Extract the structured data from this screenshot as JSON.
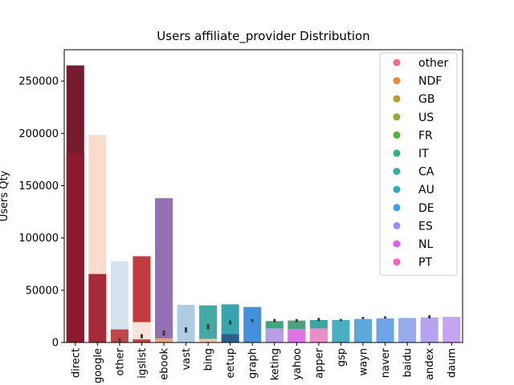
{
  "chart_data": {
    "type": "bar",
    "title": "Users affiliate_provider Distribution",
    "xlabel": "",
    "ylabel": "Users Qty",
    "ylim": [
      0,
      280000
    ],
    "yticks": [
      0,
      50000,
      100000,
      150000,
      200000,
      250000
    ],
    "ytick_labels": [
      "0",
      "50000",
      "100000",
      "150000",
      "200000",
      "250000"
    ],
    "categories": [
      "direct",
      "google",
      "other",
      "igslist",
      "ebook",
      "vast",
      "bing",
      "eetup",
      "graph",
      "keting",
      "yahoo",
      "apper",
      "gsp",
      "wayn",
      "naver",
      "baidu",
      "andex",
      "daum"
    ],
    "total_values": [
      265000,
      198500,
      77500,
      82500,
      138000,
      36000,
      35500,
      36500,
      34000,
      20500,
      21000,
      21500,
      21500,
      22500,
      23000,
      23500,
      24000,
      24500
    ],
    "overlay_bars": [
      {
        "category": "direct",
        "value": 181000,
        "color": "#8b1a2f"
      },
      {
        "category": "google",
        "value": 65500,
        "color": "#a72a3a"
      },
      {
        "category": "other",
        "value": 12500,
        "color": "#c0474a"
      },
      {
        "category": "igslist",
        "value": 19500,
        "color": "#fbe3d9"
      },
      {
        "category": "igslist",
        "value": 3000,
        "color": "#c0474a"
      },
      {
        "category": "ebook",
        "value": 4000,
        "color": "#e8a57f"
      },
      {
        "category": "bing",
        "value": 3500,
        "color": "#f1c7a9"
      },
      {
        "category": "eetup",
        "value": 8000,
        "color": "#2e5d8a"
      },
      {
        "category": "keting",
        "value": 13500,
        "color": "#b89ee8"
      },
      {
        "category": "yahoo",
        "value": 13000,
        "color": "#df72e6"
      },
      {
        "category": "apper",
        "value": 13500,
        "color": "#ea8ec9"
      }
    ],
    "error_bars": [
      {
        "category": "other",
        "value": 2500,
        "err": 1500
      },
      {
        "category": "igslist",
        "value": 6000,
        "err": 2000
      },
      {
        "category": "ebook",
        "value": 9000,
        "err": 2500
      },
      {
        "category": "vast",
        "value": 12000,
        "err": 2500
      },
      {
        "category": "bing",
        "value": 15000,
        "err": 2500
      },
      {
        "category": "eetup",
        "value": 19000,
        "err": 2000
      },
      {
        "category": "graph",
        "value": 21000,
        "err": 1500
      },
      {
        "category": "keting",
        "value": 21000,
        "err": 1500
      },
      {
        "category": "yahoo",
        "value": 21000,
        "err": 1500
      },
      {
        "category": "apper",
        "value": 22000,
        "err": 1500
      },
      {
        "category": "gsp",
        "value": 21500,
        "err": 1000
      },
      {
        "category": "wayn",
        "value": 23500,
        "err": 1000
      },
      {
        "category": "naver",
        "value": 24000,
        "err": 1000
      },
      {
        "category": "andex",
        "value": 24500,
        "err": 1500
      }
    ],
    "bar_colors": [
      "#761a2e",
      "#f8dccd",
      "#d6e3ee",
      "#c13c3f",
      "#9370b3",
      "#aecde4",
      "#45a8a2",
      "#3aa4ad",
      "#4490dc",
      "#3da880",
      "#4aa37a",
      "#3ba6a0",
      "#4aafc0",
      "#5aa9d8",
      "#6fa5e8",
      "#9aabec",
      "#b5a3ef",
      "#c5a5f2"
    ],
    "grid": false,
    "legend": {
      "placement": "top-right",
      "entries": [
        {
          "label": "other",
          "color": "#f46f84"
        },
        {
          "label": "NDF",
          "color": "#ec8a3c"
        },
        {
          "label": "GB",
          "color": "#b59b34"
        },
        {
          "label": "US",
          "color": "#9aa43a"
        },
        {
          "label": "FR",
          "color": "#55b038"
        },
        {
          "label": "IT",
          "color": "#2fae7e"
        },
        {
          "label": "CA",
          "color": "#35ada3"
        },
        {
          "label": "AU",
          "color": "#37a9be"
        },
        {
          "label": "DE",
          "color": "#3fa0e8"
        },
        {
          "label": "ES",
          "color": "#9b8df0"
        },
        {
          "label": "NL",
          "color": "#dd5ef0"
        },
        {
          "label": "PT",
          "color": "#f162cb"
        }
      ]
    }
  }
}
